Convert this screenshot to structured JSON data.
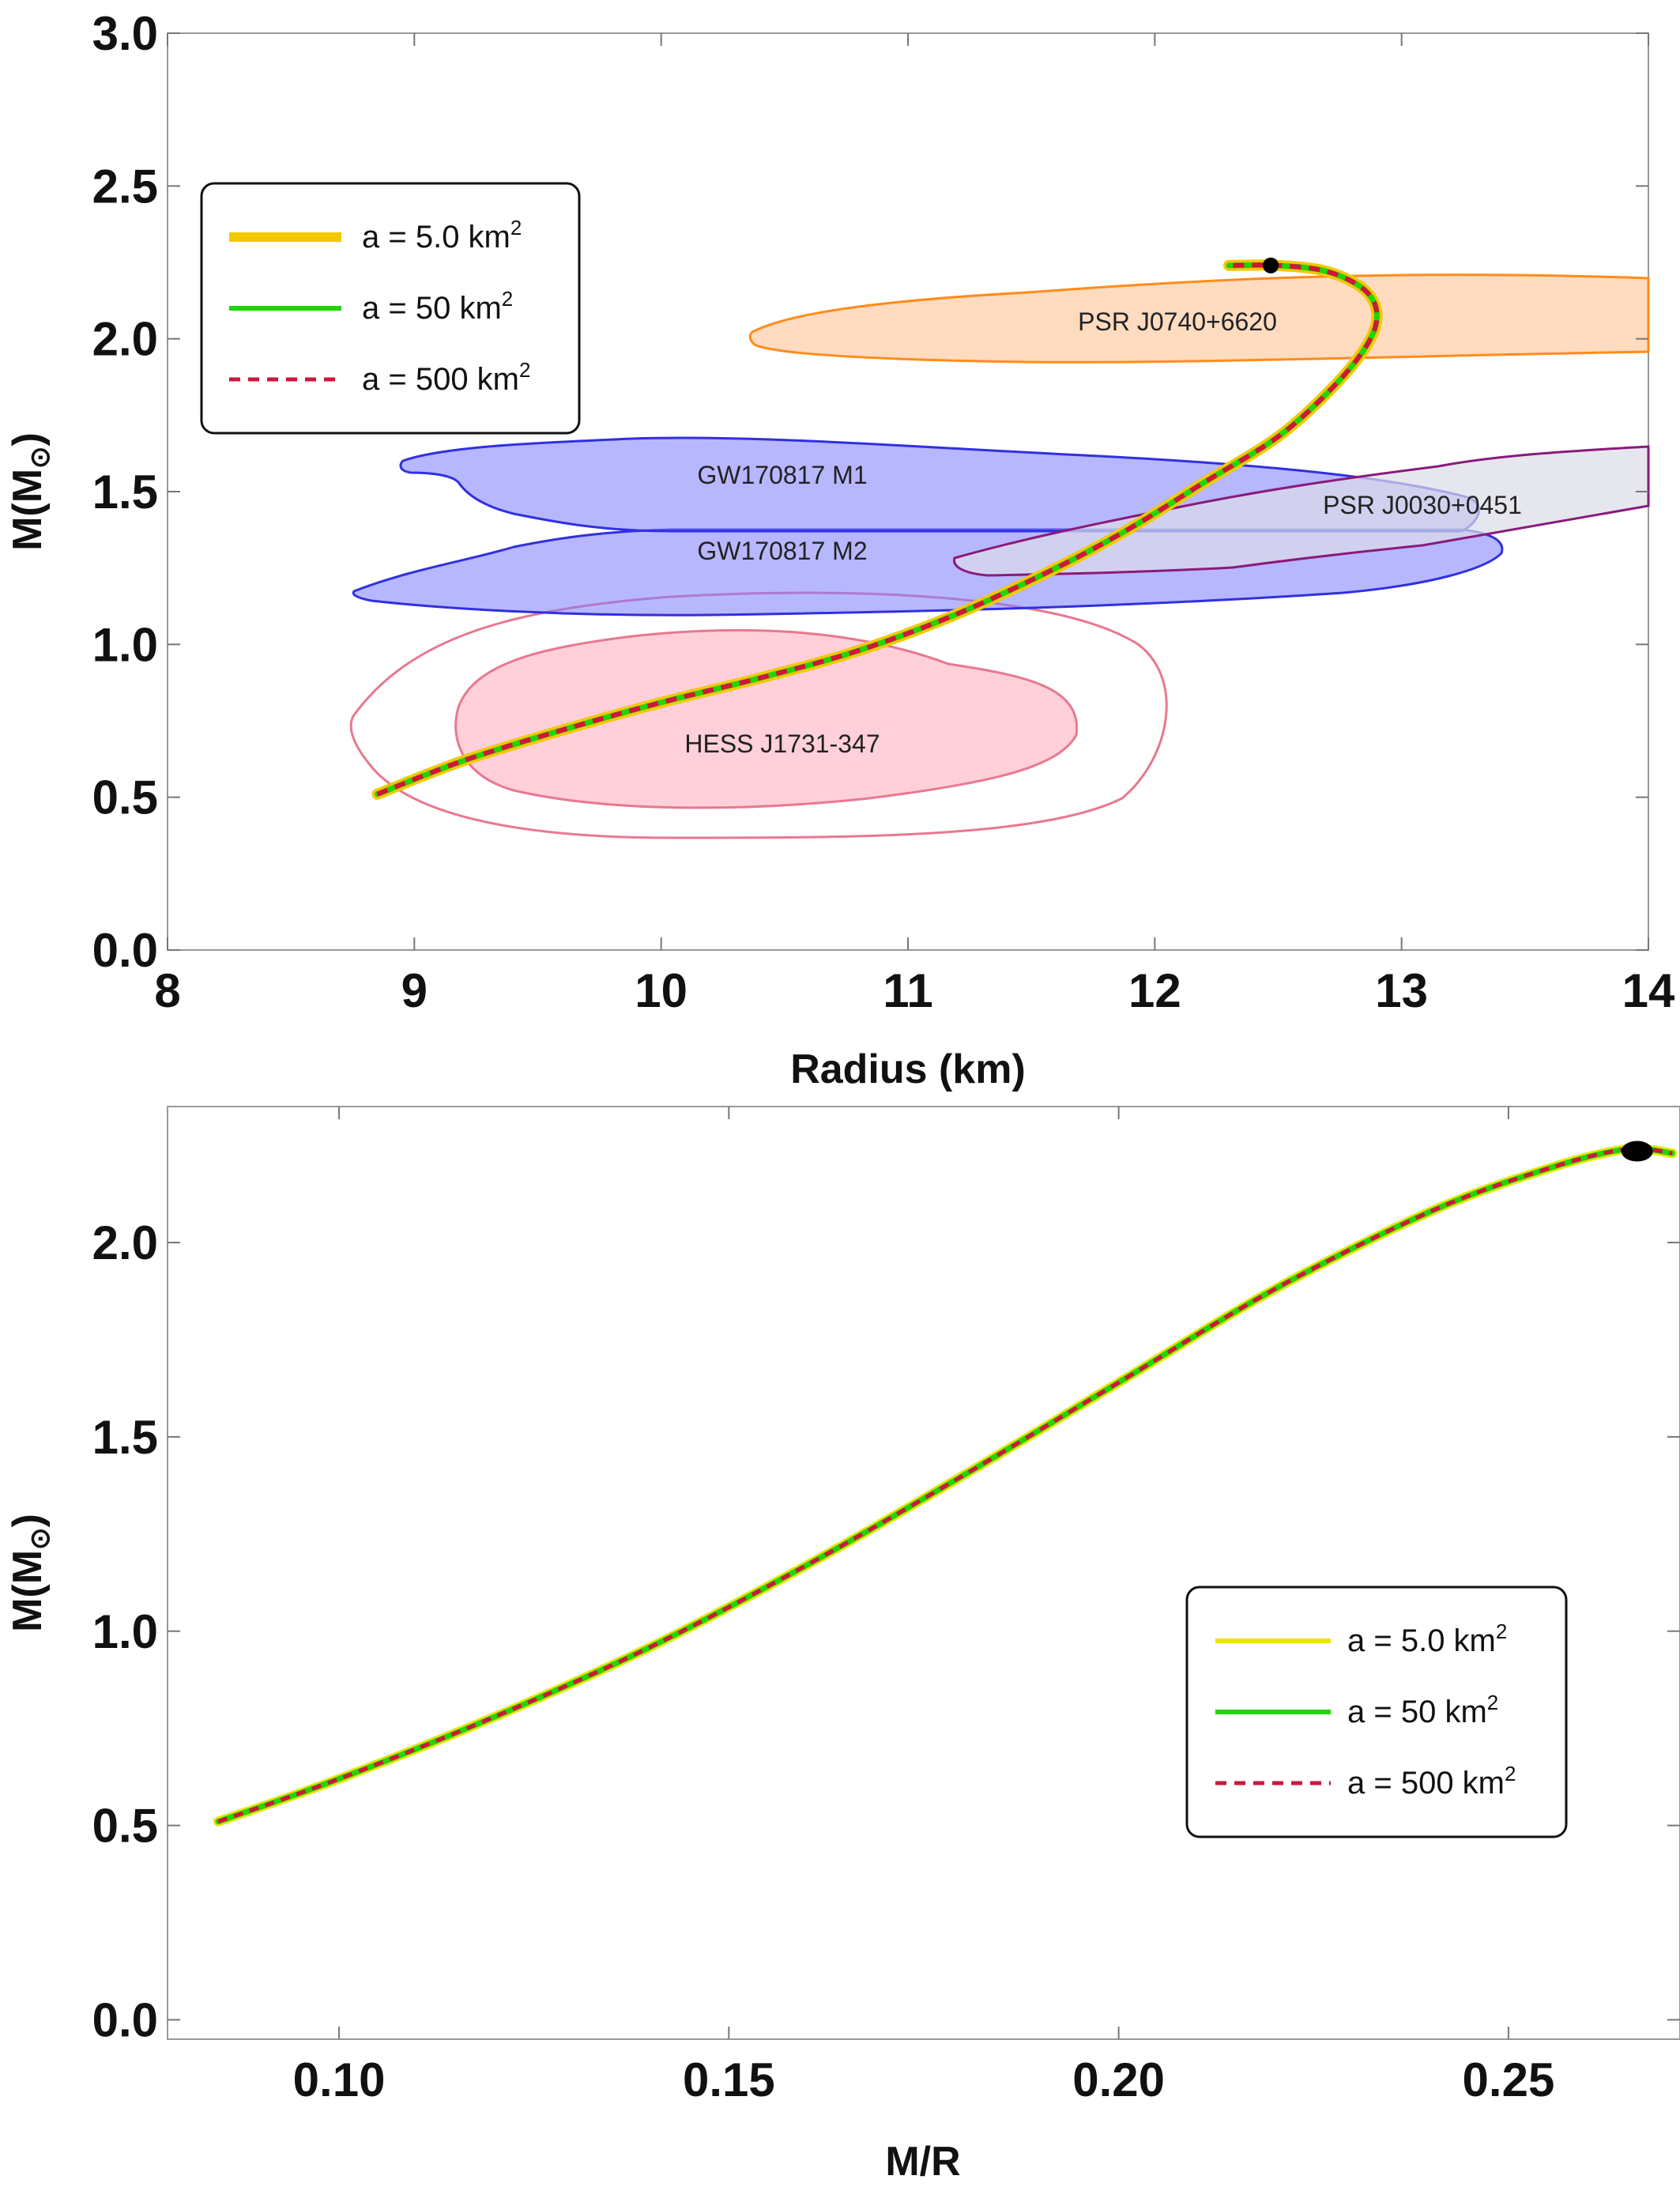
{
  "chart_data": [
    {
      "type": "line",
      "xlabel": "Radius (km)",
      "ylabel": "M(M",
      "ylabel_symbol": "⊙",
      "xlim": [
        8,
        14
      ],
      "ylim": [
        0,
        3
      ],
      "xticks": [
        "8",
        "9",
        "10",
        "11",
        "12",
        "13",
        "14"
      ],
      "yticks": [
        "0.0",
        "0.5",
        "1.0",
        "1.5",
        "2.0",
        "2.5",
        "3.0"
      ],
      "grid": false,
      "legend_position": "top-left",
      "series": [
        {
          "name": "a = 5.0 km",
          "sup": "2",
          "color": "#f4c800",
          "style": "solid"
        },
        {
          "name": "a = 50 km",
          "sup": "2",
          "color": "#22d400",
          "style": "solid"
        },
        {
          "name": "a = 500 km",
          "sup": "2",
          "color": "#d3143c",
          "style": "dashed"
        }
      ],
      "curve": {
        "x": [
          8.85,
          9.2,
          9.6,
          10.0,
          10.4,
          10.8,
          11.2,
          11.6,
          11.9,
          12.2,
          12.5,
          12.72,
          12.86,
          12.9,
          12.85,
          12.7,
          12.5,
          12.3
        ],
        "y": [
          0.51,
          0.62,
          0.72,
          0.81,
          0.89,
          0.98,
          1.1,
          1.25,
          1.38,
          1.53,
          1.68,
          1.84,
          1.98,
          2.08,
          2.16,
          2.22,
          2.24,
          2.24
        ]
      },
      "max_point": {
        "x": 12.47,
        "y": 2.24
      },
      "regions": [
        {
          "label": "PSR J0740+6620",
          "color": "#ff8c1a"
        },
        {
          "label": "GW170817 M1",
          "color": "#4040ff"
        },
        {
          "label": "GW170817 M2",
          "color": "#4040ff"
        },
        {
          "label": "PSR J0030+0451",
          "color": "#8a1a7a"
        },
        {
          "label": "HESS J1731-347",
          "color": "#e85878"
        }
      ]
    },
    {
      "type": "line",
      "xlabel": "M/R",
      "ylabel": "M(M",
      "ylabel_symbol": "⊙",
      "xlim": [
        0.078,
        0.272
      ],
      "ylim": [
        -0.05,
        2.35
      ],
      "xticks": [
        "0.10",
        "0.15",
        "0.20",
        "0.25"
      ],
      "yticks": [
        "0.0",
        "0.5",
        "1.0",
        "1.5",
        "2.0"
      ],
      "grid": false,
      "legend_position": "bottom-right",
      "series": [
        {
          "name": "a = 5.0 km",
          "sup": "2",
          "color": "#e6e600",
          "style": "solid"
        },
        {
          "name": "a = 50 km",
          "sup": "2",
          "color": "#22d400",
          "style": "solid"
        },
        {
          "name": "a = 500 km",
          "sup": "2",
          "color": "#d3143c",
          "style": "dashed"
        }
      ],
      "curve": {
        "x": [
          0.0845,
          0.1,
          0.12,
          0.14,
          0.16,
          0.18,
          0.2,
          0.22,
          0.24,
          0.255,
          0.265,
          0.271
        ],
        "y": [
          0.51,
          0.62,
          0.78,
          0.96,
          1.17,
          1.4,
          1.64,
          1.88,
          2.08,
          2.19,
          2.24,
          2.23
        ]
      },
      "max_point": {
        "x": 0.2665,
        "y": 2.235
      }
    }
  ]
}
